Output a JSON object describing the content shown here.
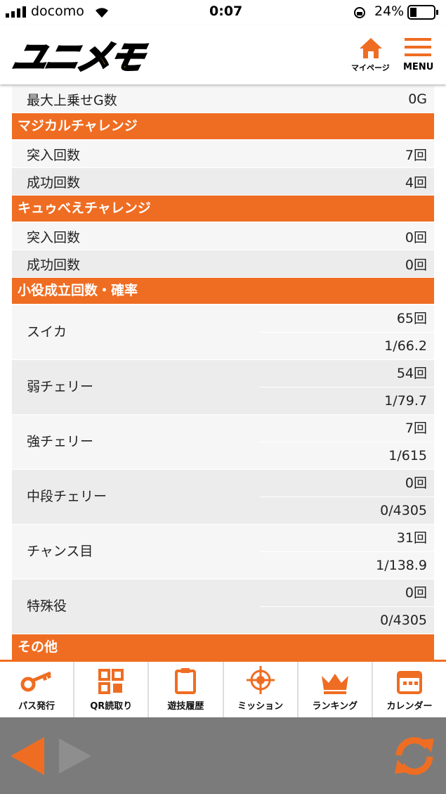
{
  "status_bar": {
    "carrier": "docomo",
    "time": "0:07",
    "battery": "24%"
  },
  "header": {
    "logo": "ユニメモ",
    "mypage": "マイページ",
    "menu": "MENU"
  },
  "sections": [
    {
      "rows": [
        {
          "label": "最大上乗せG数",
          "value": "0G"
        }
      ]
    },
    {
      "title": "マジカルチャレンジ",
      "rows": [
        {
          "label": "突入回数",
          "value": "7回"
        },
        {
          "label": "成功回数",
          "value": "4回"
        }
      ]
    },
    {
      "title": "キュゥべえチャレンジ",
      "rows": [
        {
          "label": "突入回数",
          "value": "0回"
        },
        {
          "label": "成功回数",
          "value": "0回"
        }
      ]
    },
    {
      "title": "小役成立回数・確率",
      "rows": [
        {
          "label": "スイカ",
          "count": "65回",
          "rate": "1/66.2"
        },
        {
          "label": "弱チェリー",
          "count": "54回",
          "rate": "1/79.7"
        },
        {
          "label": "強チェリー",
          "count": "7回",
          "rate": "1/615"
        },
        {
          "label": "中段チェリー",
          "count": "0回",
          "rate": "0/4305"
        },
        {
          "label": "チャンス目",
          "count": "31回",
          "rate": "1/138.9"
        },
        {
          "label": "特殊役",
          "count": "0回",
          "rate": "0/4305"
        }
      ]
    },
    {
      "title": "その他"
    }
  ],
  "tabs": [
    "パス発行",
    "QR読取り",
    "遊技履歴",
    "ミッション",
    "ランキング",
    "カレンダー"
  ]
}
